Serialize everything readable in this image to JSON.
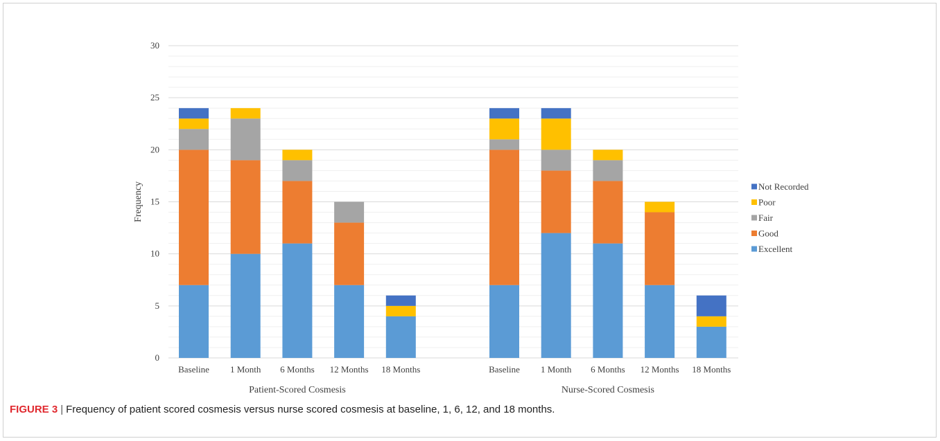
{
  "caption": {
    "label": "FIGURE 3",
    "separator": "|",
    "text": "Frequency of patient scored cosmesis versus nurse scored cosmesis at baseline, 1, 6, 12, and 18 months."
  },
  "chart_data": {
    "type": "bar",
    "stacked": true,
    "ylabel": "Frequency",
    "ylim": [
      0,
      30
    ],
    "yticks": [
      0,
      5,
      10,
      15,
      20,
      25,
      30
    ],
    "grid": true,
    "legend_position": "right",
    "groups": [
      {
        "label": "Patient-Scored Cosmesis",
        "categories": [
          "Baseline",
          "1 Month",
          "6 Months",
          "12 Months",
          "18 Months"
        ],
        "series": [
          {
            "name": "Excellent",
            "color": "#5b9bd5",
            "values": [
              7,
              10,
              11,
              7,
              4
            ]
          },
          {
            "name": "Good",
            "color": "#ed7d31",
            "values": [
              13,
              9,
              6,
              6,
              0
            ]
          },
          {
            "name": "Fair",
            "color": "#a5a5a5",
            "values": [
              2,
              4,
              2,
              2,
              0
            ]
          },
          {
            "name": "Poor",
            "color": "#ffc000",
            "values": [
              1,
              1,
              1,
              0,
              1
            ]
          },
          {
            "name": "Not Recorded",
            "color": "#4472c4",
            "values": [
              1,
              0,
              0,
              0,
              1
            ]
          }
        ]
      },
      {
        "label": "Nurse-Scored Cosmesis",
        "categories": [
          "Baseline",
          "1 Month",
          "6 Months",
          "12 Months",
          "18 Months"
        ],
        "series": [
          {
            "name": "Excellent",
            "color": "#5b9bd5",
            "values": [
              7,
              12,
              11,
              7,
              3
            ]
          },
          {
            "name": "Good",
            "color": "#ed7d31",
            "values": [
              13,
              6,
              6,
              7,
              0
            ]
          },
          {
            "name": "Fair",
            "color": "#a5a5a5",
            "values": [
              1,
              2,
              2,
              0,
              0
            ]
          },
          {
            "name": "Poor",
            "color": "#ffc000",
            "values": [
              2,
              3,
              1,
              1,
              1
            ]
          },
          {
            "name": "Not Recorded",
            "color": "#4472c4",
            "values": [
              1,
              1,
              0,
              0,
              2
            ]
          }
        ]
      }
    ],
    "legend": [
      {
        "name": "Not Recorded",
        "color": "#4472c4"
      },
      {
        "name": "Poor",
        "color": "#ffc000"
      },
      {
        "name": "Fair",
        "color": "#a5a5a5"
      },
      {
        "name": "Good",
        "color": "#ed7d31"
      },
      {
        "name": "Excellent",
        "color": "#5b9bd5"
      }
    ]
  }
}
